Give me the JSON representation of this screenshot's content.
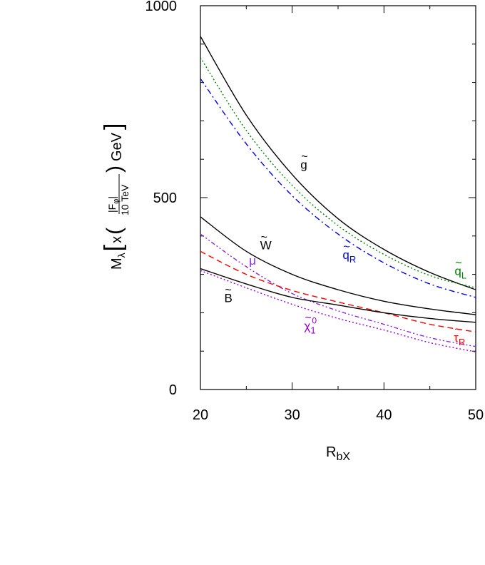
{
  "chart_data": {
    "type": "line",
    "xlabel": "R",
    "xlabel_sub": "bX",
    "ylabel": {
      "lead": "M",
      "lead_sub": "λ",
      "times": "x",
      "num": "|F",
      "num_sub": "φ",
      "num_end": "|",
      "den": "10 TeV",
      "unit": "GeV"
    },
    "xlim": [
      20,
      50
    ],
    "ylim": [
      0,
      1000
    ],
    "xticks": [
      20,
      30,
      40,
      50
    ],
    "yticks_labeled": [
      0,
      500,
      1000
    ],
    "yticks_minor": [
      100,
      200,
      300,
      400,
      600,
      700,
      800,
      900
    ],
    "grid": false,
    "legend": "none",
    "x": [
      20,
      25,
      30,
      35,
      40,
      45,
      50
    ],
    "series": [
      {
        "name": "g̃",
        "style": "solid",
        "color": "#000000",
        "values": [
          920,
          715,
          560,
          445,
          365,
          305,
          260
        ]
      },
      {
        "name": "q̃L",
        "style": "dotted",
        "color": "#008000",
        "values": [
          865,
          675,
          532,
          427,
          352,
          297,
          265
        ]
      },
      {
        "name": "q̃R",
        "style": "dashdot",
        "color": "#0000ee",
        "values": [
          810,
          640,
          505,
          405,
          330,
          275,
          240
        ]
      },
      {
        "name": "W̃",
        "style": "solid",
        "color": "#000000",
        "values": [
          450,
          360,
          300,
          260,
          230,
          210,
          195
        ]
      },
      {
        "name": "μ",
        "style": "dashdot2",
        "color": "#8a2be2",
        "values": [
          405,
          320,
          250,
          205,
          170,
          135,
          112
        ]
      },
      {
        "name": "τ̃R",
        "style": "dashed",
        "color": "#ff0000",
        "values": [
          360,
          300,
          258,
          228,
          200,
          170,
          150
        ]
      },
      {
        "name": "B̃",
        "style": "solid",
        "color": "#000000",
        "values": [
          315,
          275,
          240,
          220,
          200,
          185,
          175
        ]
      },
      {
        "name": "χ̃⁰₁",
        "style": "dotted",
        "color": "#9400d3",
        "values": [
          310,
          265,
          222,
          185,
          155,
          122,
          98
        ]
      }
    ],
    "labels": [
      {
        "text": "g",
        "accent": "~",
        "sub": "",
        "sup": "",
        "color": "#000000",
        "x": 30.9,
        "y": 575
      },
      {
        "text": "q",
        "accent": "~",
        "sub": "L",
        "sup": "",
        "color": "#008000",
        "x": 47.7,
        "y": 298
      },
      {
        "text": "q",
        "accent": "~",
        "sub": "R",
        "sup": "",
        "color": "#0000ee",
        "x": 35.5,
        "y": 340
      },
      {
        "text": "W",
        "accent": "~",
        "sub": "",
        "sup": "",
        "color": "#000000",
        "x": 26.5,
        "y": 365
      },
      {
        "text": "μ",
        "accent": "",
        "sub": "",
        "sup": "",
        "color": "#8a2be2",
        "x": 25.3,
        "y": 325
      },
      {
        "text": "τ",
        "accent": "~",
        "sub": "R",
        "sup": "",
        "color": "#ff0000",
        "x": 47.6,
        "y": 125
      },
      {
        "text": "B",
        "accent": "~",
        "sub": "",
        "sup": "",
        "color": "#000000",
        "x": 22.6,
        "y": 228
      },
      {
        "text": "χ",
        "accent": "~",
        "sub": "1",
        "sup": "0",
        "color": "#9400d3",
        "x": 31.3,
        "y": 155
      }
    ]
  }
}
